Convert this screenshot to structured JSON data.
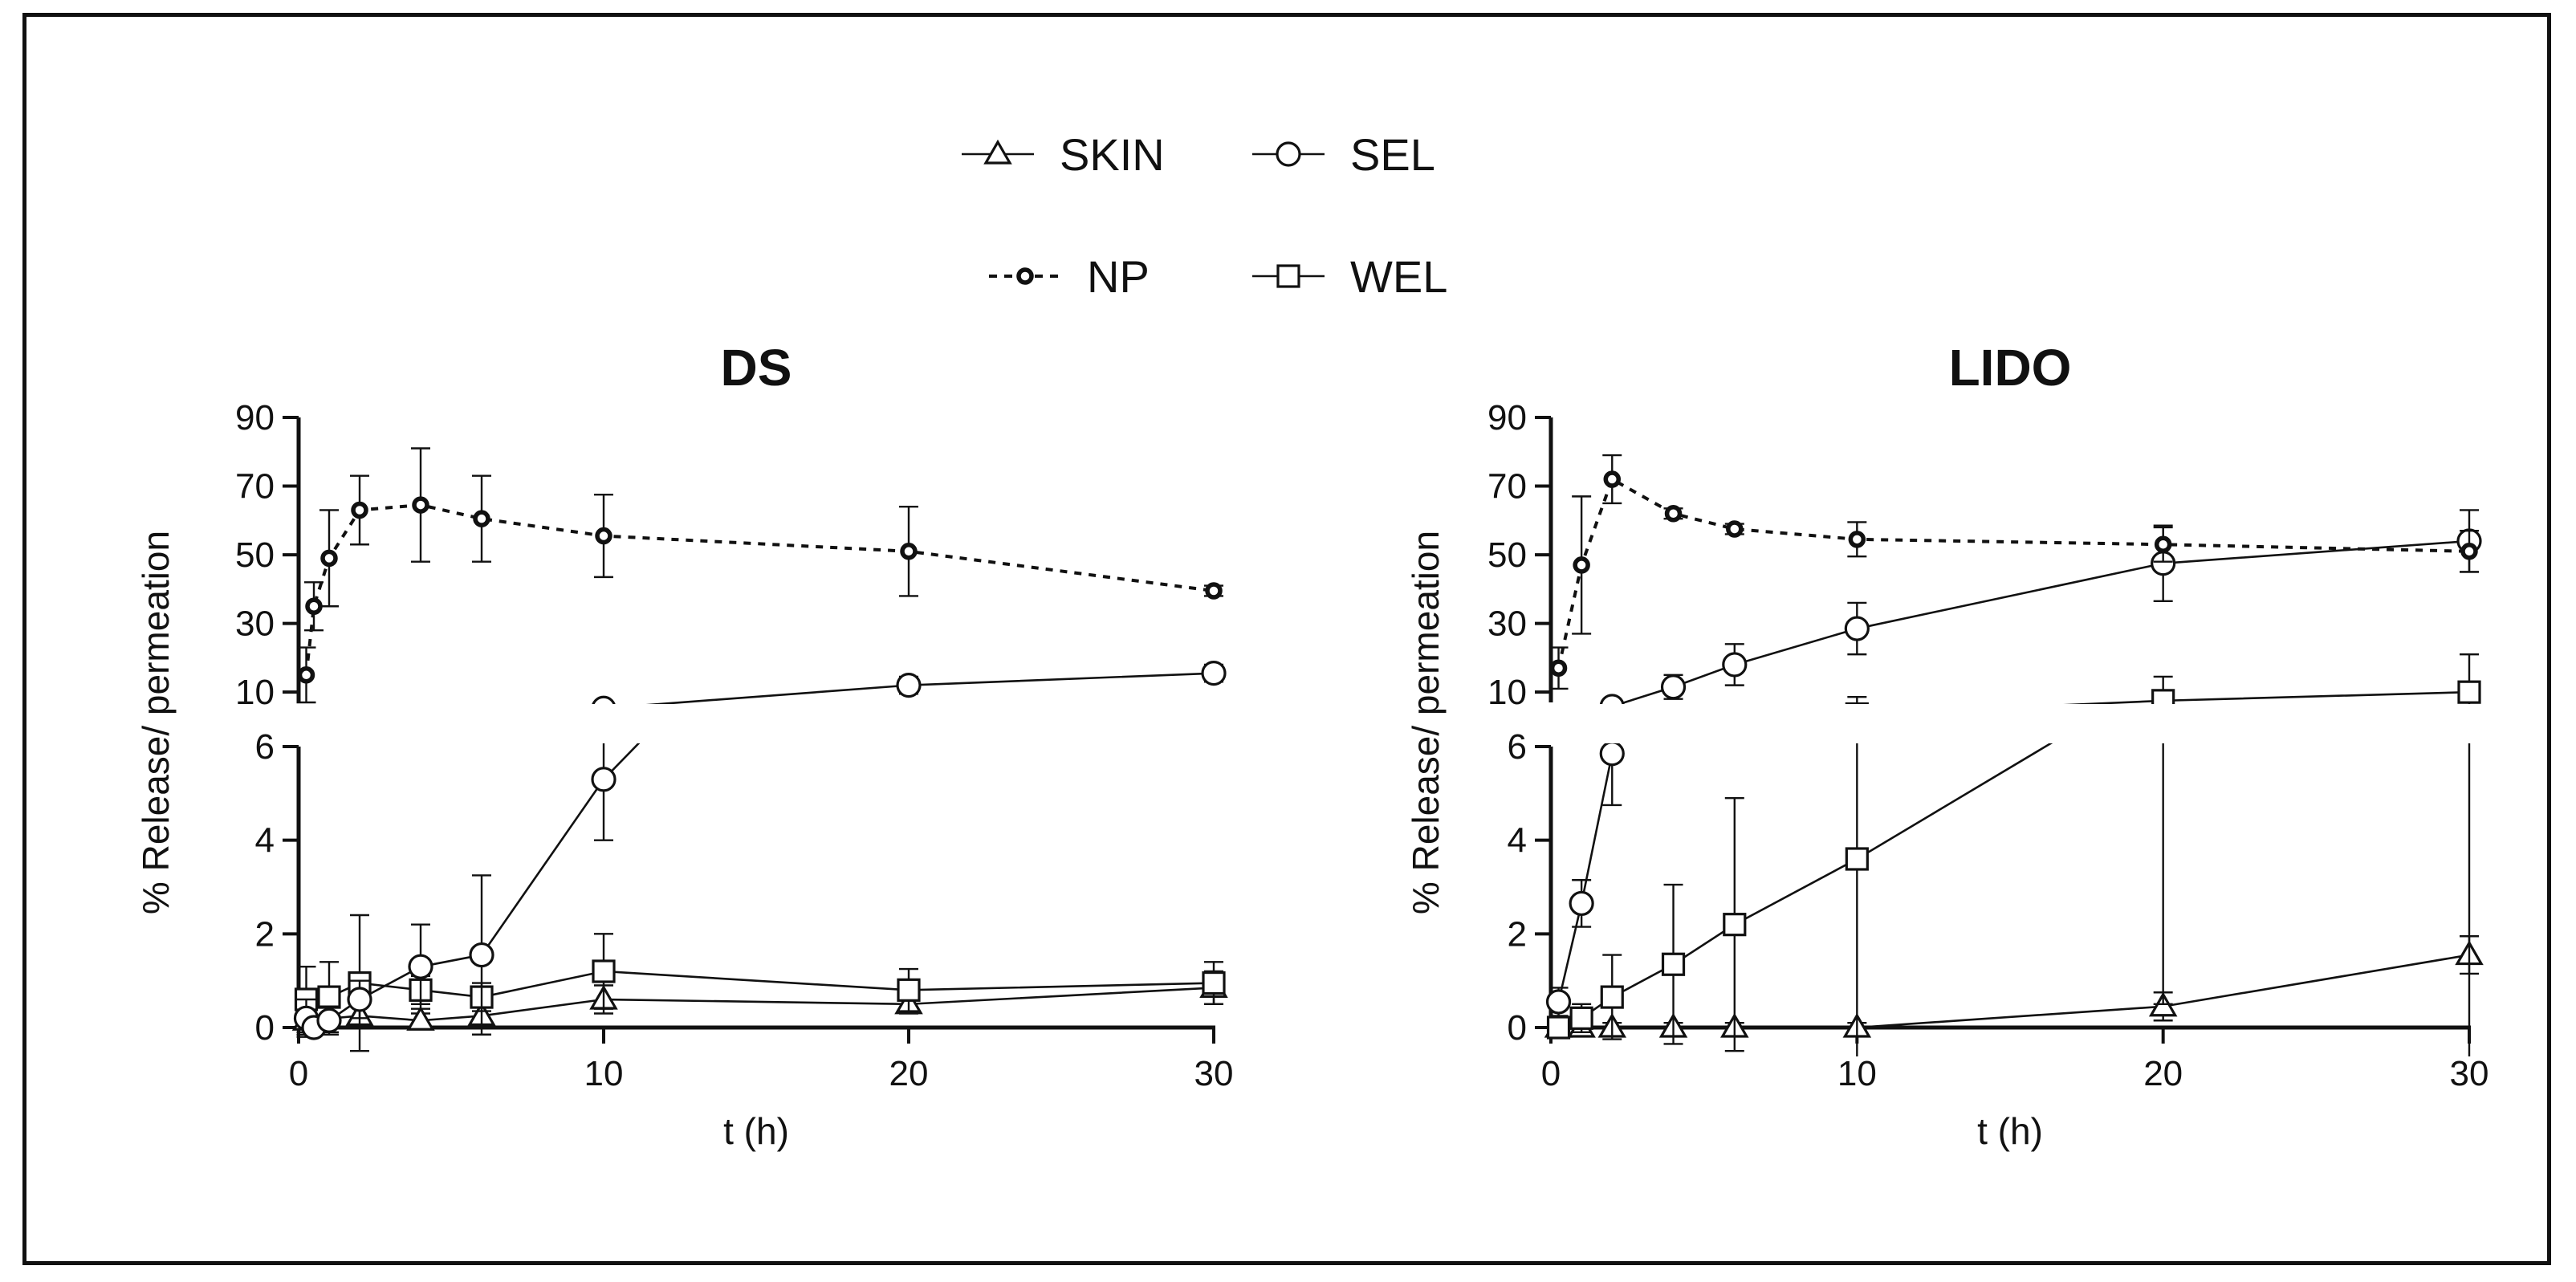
{
  "legend": {
    "items": [
      {
        "name": "SKIN",
        "marker": "triangle",
        "dashed": false
      },
      {
        "name": "SEL",
        "marker": "circle",
        "dashed": false
      },
      {
        "name": "NP",
        "marker": "circle-bold",
        "dashed": true
      },
      {
        "name": "WEL",
        "marker": "square",
        "dashed": false
      }
    ]
  },
  "chart_data": [
    {
      "type": "line",
      "title": "DS",
      "xlabel": "t (h)",
      "ylabel": "% Release/ permeation",
      "x_ticks": [
        "0",
        "10",
        "20",
        "30"
      ],
      "y_ticks_upper": [
        "10",
        "30",
        "50",
        "70",
        "90"
      ],
      "y_ticks_lower": [
        "0",
        "2",
        "4",
        "6"
      ],
      "xlim": [
        0,
        30
      ],
      "ylim_upper": [
        7,
        90
      ],
      "ylim_lower": [
        0,
        6
      ],
      "y_axis_break": true,
      "series": [
        {
          "name": "NP",
          "x": [
            0.25,
            0.5,
            1,
            2,
            4,
            6,
            10,
            20,
            30
          ],
          "y": [
            15,
            35,
            49,
            63,
            64.5,
            60.5,
            55.5,
            51,
            39.5
          ],
          "err": [
            8,
            7,
            14,
            10,
            16.5,
            12.5,
            12,
            13,
            1.5
          ]
        },
        {
          "name": "SEL",
          "x": [
            0.25,
            0.5,
            1,
            2,
            4,
            6,
            10,
            20,
            30
          ],
          "y": [
            0.2,
            0,
            0.15,
            0.6,
            1.3,
            1.55,
            5.3,
            12,
            15.5
          ],
          "err": [
            0.4,
            0.1,
            0.3,
            0.4,
            0.9,
            1.7,
            1.3,
            2.5,
            2.5
          ]
        },
        {
          "name": "WEL",
          "x": [
            0.25,
            1,
            2,
            4,
            6,
            10,
            20,
            30
          ],
          "y": [
            0.6,
            0.65,
            0.95,
            0.8,
            0.65,
            1.2,
            0.8,
            0.95
          ],
          "err": [
            0.7,
            0.75,
            1.45,
            0.3,
            0.3,
            0.8,
            0.45,
            0.45
          ]
        },
        {
          "name": "SKIN",
          "x": [
            0.25,
            2,
            4,
            6,
            10,
            20,
            30
          ],
          "y": [
            0.15,
            0.25,
            0.15,
            0.25,
            0.6,
            0.5,
            0.85
          ],
          "err": [
            0.3,
            0.2,
            0.15,
            0.2,
            0.3,
            0.2,
            0.35
          ]
        }
      ]
    },
    {
      "type": "line",
      "title": "LIDO",
      "xlabel": "t (h)",
      "ylabel": "% Release/ permeation",
      "x_ticks": [
        "0",
        "10",
        "20",
        "30"
      ],
      "y_ticks_upper": [
        "10",
        "30",
        "50",
        "70",
        "90"
      ],
      "y_ticks_lower": [
        "0",
        "2",
        "4",
        "6"
      ],
      "xlim": [
        0,
        30
      ],
      "ylim_upper": [
        7,
        90
      ],
      "ylim_lower": [
        0,
        6
      ],
      "y_axis_break": true,
      "series": [
        {
          "name": "NP",
          "x": [
            0.25,
            1,
            2,
            4,
            6,
            10,
            20,
            30
          ],
          "y": [
            17,
            47,
            72,
            62,
            57.5,
            54.5,
            53,
            51
          ],
          "err": [
            6,
            20,
            7,
            1.5,
            1.5,
            5,
            5,
            6
          ]
        },
        {
          "name": "SEL",
          "x": [
            0.25,
            1,
            2,
            4,
            6,
            10,
            20,
            30
          ],
          "y": [
            0.55,
            2.65,
            5.85,
            11.5,
            18,
            28.5,
            47.5,
            54
          ],
          "err": [
            0.3,
            0.5,
            1.1,
            3.5,
            6,
            7.5,
            11,
            9
          ]
        },
        {
          "name": "WEL",
          "x": [
            0.25,
            1,
            2,
            4,
            6,
            10,
            20,
            30
          ],
          "y": [
            0,
            0.2,
            0.65,
            1.35,
            2.2,
            3.6,
            7.5,
            10
          ],
          "err": [
            0.2,
            0.3,
            0.9,
            1.7,
            2.7,
            5,
            7,
            11
          ]
        },
        {
          "name": "SKIN",
          "x": [
            0.25,
            1,
            2,
            4,
            6,
            10,
            20,
            30
          ],
          "y": [
            0,
            0,
            0,
            0,
            0,
            0,
            0.45,
            1.55
          ],
          "err": [
            0.1,
            0.1,
            0.1,
            0.1,
            0.1,
            0.1,
            0.3,
            0.4
          ]
        }
      ]
    }
  ]
}
